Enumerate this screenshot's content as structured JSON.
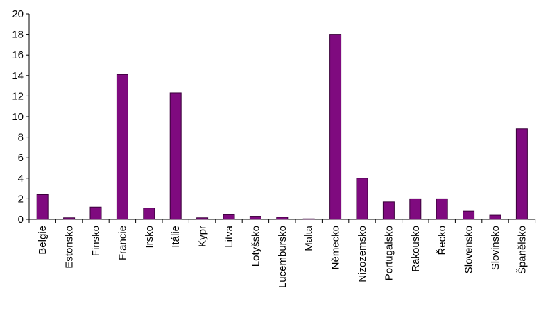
{
  "chart_data": {
    "type": "bar",
    "categories": [
      "Belgie",
      "Estonsko",
      "Finsko",
      "Francie",
      "Irsko",
      "Itálie",
      "Kypr",
      "Litva",
      "Lotyšsko",
      "Lucembursko",
      "Malta",
      "Německo",
      "Nizozemsko",
      "Portugalsko",
      "Rakousko",
      "Řecko",
      "Slovensko",
      "Slovinsko",
      "Španělsko"
    ],
    "values": [
      2.4,
      0.15,
      1.2,
      14.1,
      1.1,
      12.3,
      0.15,
      0.45,
      0.3,
      0.2,
      0.05,
      18,
      4,
      1.7,
      2,
      2,
      0.8,
      0.4,
      8.8
    ],
    "color": "#7f0a7f",
    "ylim": [
      0,
      20
    ],
    "yticks": [
      0,
      2,
      4,
      6,
      8,
      10,
      12,
      14,
      16,
      18,
      20
    ],
    "grid": false
  }
}
